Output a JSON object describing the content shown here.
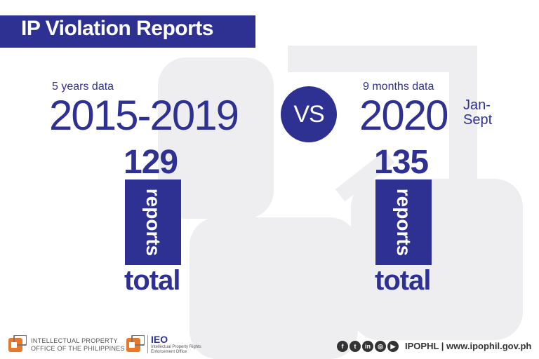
{
  "title": "IP Violation Reports",
  "left": {
    "caption": "5 years data",
    "years": "2015-2019",
    "count": "129",
    "unit": "reports",
    "total_label": "total"
  },
  "vs_label": "VS",
  "right": {
    "caption": "9 months data",
    "year": "2020",
    "range_line1": "Jan-",
    "range_line2": "Sept",
    "count": "135",
    "unit": "reports",
    "total_label": "total"
  },
  "footer": {
    "ipophl_line1": "INTELLECTUAL PROPERTY",
    "ipophl_line2": "OFFICE OF THE PHILIPPINES",
    "ieo_title": "IEO",
    "ieo_line1": "Intellectual Property Rights",
    "ieo_line2": "Enforcement Office",
    "social_icons": [
      "facebook-icon",
      "twitter-icon",
      "linkedin-icon",
      "instagram-icon",
      "youtube-icon"
    ],
    "handle_text": "IPOPHL | www.ipophil.gov.ph"
  },
  "colors": {
    "brand": "#2e3192",
    "watermark": "#eeeef0",
    "logo_orange": "#e8792c"
  }
}
